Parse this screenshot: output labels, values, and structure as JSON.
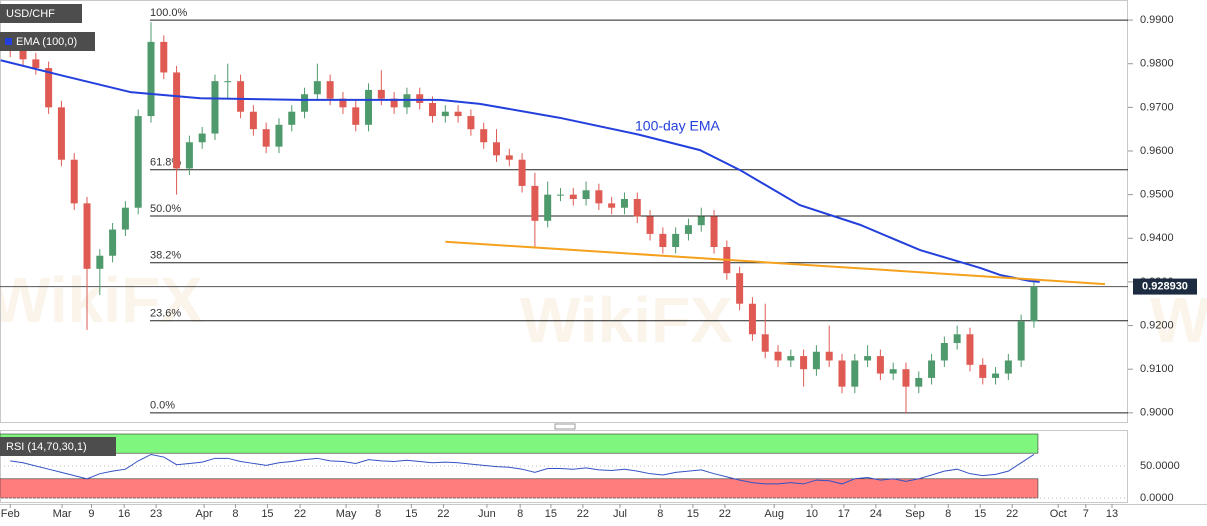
{
  "watermark": "WikiFX",
  "chart_data": [
    {
      "type": "candlestick",
      "title": "USD/CHF",
      "up_color": "#4f9a6c",
      "down_color": "#df5a52",
      "xlim": [
        -1.6,
        174.7
      ],
      "ylim": [
        0.8979,
        0.9946
      ],
      "yticks": [
        {
          "value": 0.99,
          "label": "0.9900"
        },
        {
          "value": 0.98,
          "label": "0.9800"
        },
        {
          "value": 0.97,
          "label": "0.9700"
        },
        {
          "value": 0.96,
          "label": "0.9600"
        },
        {
          "value": 0.95,
          "label": "0.9500"
        },
        {
          "value": 0.94,
          "label": "0.9400"
        },
        {
          "value": 0.93,
          "label": "0.9300"
        },
        {
          "value": 0.92,
          "label": "0.9200"
        },
        {
          "value": 0.91,
          "label": "0.9100"
        },
        {
          "value": 0.9,
          "label": "0.9000"
        }
      ],
      "xticks": [
        {
          "value": 0,
          "label": "Feb"
        },
        {
          "value": 8.1,
          "label": "Mar"
        },
        {
          "value": 12.7,
          "label": "9"
        },
        {
          "value": 17.8,
          "label": "16"
        },
        {
          "value": 22.8,
          "label": "23"
        },
        {
          "value": 30.3,
          "label": "Apr"
        },
        {
          "value": 35.2,
          "label": "8"
        },
        {
          "value": 40.2,
          "label": "15"
        },
        {
          "value": 45.3,
          "label": "22"
        },
        {
          "value": 52.5,
          "label": "May"
        },
        {
          "value": 57.5,
          "label": "8"
        },
        {
          "value": 62.7,
          "label": "15"
        },
        {
          "value": 67.7,
          "label": "22"
        },
        {
          "value": 74.5,
          "label": "Jun"
        },
        {
          "value": 79.7,
          "label": "8"
        },
        {
          "value": 84.5,
          "label": "15"
        },
        {
          "value": 89.5,
          "label": "22"
        },
        {
          "value": 95.3,
          "label": "Jul"
        },
        {
          "value": 101.6,
          "label": "8"
        },
        {
          "value": 106.7,
          "label": "15"
        },
        {
          "value": 111.7,
          "label": "22"
        },
        {
          "value": 119.4,
          "label": "Aug"
        },
        {
          "value": 125.3,
          "label": "10"
        },
        {
          "value": 130.3,
          "label": "17"
        },
        {
          "value": 135.3,
          "label": "24"
        },
        {
          "value": 141.4,
          "label": "Sep"
        },
        {
          "value": 146.6,
          "label": "8"
        },
        {
          "value": 151.6,
          "label": "15"
        },
        {
          "value": 156.6,
          "label": "22"
        },
        {
          "value": 163.8,
          "label": "Oct"
        },
        {
          "value": 168.1,
          "label": "7"
        },
        {
          "value": 172.2,
          "label": "13"
        }
      ],
      "x": [
        0,
        2,
        4,
        6,
        8,
        10,
        12,
        14,
        16,
        18,
        20,
        22,
        24,
        26,
        28,
        30,
        32,
        34,
        36,
        38,
        40,
        42,
        44,
        46,
        48,
        50,
        52,
        54,
        56,
        58,
        60,
        62,
        64,
        66,
        68,
        70,
        72,
        74,
        76,
        78,
        80,
        82,
        84,
        86,
        88,
        90,
        92,
        94,
        96,
        98,
        100,
        102,
        104,
        106,
        108,
        110,
        112,
        114,
        116,
        118,
        120,
        122,
        124,
        126,
        128,
        130,
        132,
        134,
        136,
        138,
        140,
        142,
        144,
        146,
        148,
        150,
        152,
        154,
        156,
        158,
        160
      ],
      "open": [
        0.984,
        0.983,
        0.981,
        0.979,
        0.97,
        0.958,
        0.948,
        0.933,
        0.936,
        0.942,
        0.947,
        0.968,
        0.985,
        0.978,
        0.956,
        0.962,
        0.964,
        0.976,
        0.976,
        0.969,
        0.965,
        0.961,
        0.966,
        0.969,
        0.973,
        0.976,
        0.972,
        0.97,
        0.966,
        0.974,
        0.972,
        0.97,
        0.973,
        0.971,
        0.968,
        0.969,
        0.968,
        0.965,
        0.962,
        0.959,
        0.958,
        0.952,
        0.944,
        0.95,
        0.95,
        0.949,
        0.951,
        0.948,
        0.947,
        0.949,
        0.945,
        0.941,
        0.938,
        0.941,
        0.943,
        0.945,
        0.938,
        0.932,
        0.925,
        0.918,
        0.914,
        0.912,
        0.913,
        0.91,
        0.914,
        0.912,
        0.906,
        0.912,
        0.913,
        0.909,
        0.91,
        0.906,
        0.908,
        0.912,
        0.916,
        0.918,
        0.911,
        0.908,
        0.909,
        0.912,
        0.921
      ],
      "high": [
        0.9855,
        0.9845,
        0.9825,
        0.9805,
        0.9715,
        0.9595,
        0.9495,
        0.9375,
        0.9435,
        0.9485,
        0.9695,
        0.9895,
        0.9865,
        0.9795,
        0.9635,
        0.9655,
        0.9775,
        0.98,
        0.9775,
        0.9705,
        0.9665,
        0.9675,
        0.9705,
        0.9745,
        0.98,
        0.9775,
        0.9735,
        0.9715,
        0.9755,
        0.9785,
        0.9735,
        0.9745,
        0.9745,
        0.9725,
        0.9705,
        0.9705,
        0.9695,
        0.9665,
        0.965,
        0.9605,
        0.9595,
        0.955,
        0.953,
        0.9515,
        0.9515,
        0.953,
        0.9525,
        0.9495,
        0.9505,
        0.9505,
        0.9465,
        0.9425,
        0.9425,
        0.9445,
        0.947,
        0.9465,
        0.9395,
        0.9335,
        0.9265,
        0.925,
        0.9155,
        0.9145,
        0.9145,
        0.9155,
        0.92,
        0.9135,
        0.9135,
        0.9155,
        0.9145,
        0.9115,
        0.9115,
        0.9095,
        0.9135,
        0.9175,
        0.92,
        0.9195,
        0.9125,
        0.9105,
        0.9135,
        0.9225,
        0.93
      ],
      "low": [
        0.9815,
        0.9795,
        0.9775,
        0.9685,
        0.9565,
        0.9465,
        0.919,
        0.927,
        0.9345,
        0.9405,
        0.9455,
        0.9665,
        0.9765,
        0.95,
        0.9545,
        0.9605,
        0.9625,
        0.972,
        0.9675,
        0.9635,
        0.9595,
        0.9595,
        0.9645,
        0.9675,
        0.9715,
        0.9705,
        0.9685,
        0.9645,
        0.9645,
        0.9705,
        0.9685,
        0.9685,
        0.9695,
        0.9665,
        0.9665,
        0.9665,
        0.9635,
        0.9605,
        0.9575,
        0.9565,
        0.9505,
        0.938,
        0.9425,
        0.9485,
        0.9475,
        0.9475,
        0.9465,
        0.9455,
        0.9455,
        0.9435,
        0.9395,
        0.9365,
        0.9365,
        0.9395,
        0.9415,
        0.9365,
        0.9305,
        0.9235,
        0.9165,
        0.9125,
        0.9105,
        0.9105,
        0.906,
        0.9085,
        0.9105,
        0.9045,
        0.9045,
        0.9105,
        0.9075,
        0.9075,
        0.8998,
        0.9045,
        0.9065,
        0.9105,
        0.9145,
        0.9095,
        0.9065,
        0.9065,
        0.9075,
        0.9105,
        0.9195
      ],
      "close": [
        0.983,
        0.981,
        0.979,
        0.97,
        0.958,
        0.948,
        0.933,
        0.936,
        0.942,
        0.947,
        0.968,
        0.985,
        0.978,
        0.956,
        0.962,
        0.964,
        0.976,
        0.976,
        0.969,
        0.965,
        0.961,
        0.966,
        0.969,
        0.973,
        0.976,
        0.972,
        0.97,
        0.966,
        0.974,
        0.972,
        0.97,
        0.973,
        0.971,
        0.968,
        0.969,
        0.968,
        0.965,
        0.962,
        0.959,
        0.958,
        0.952,
        0.944,
        0.95,
        0.95,
        0.949,
        0.951,
        0.948,
        0.947,
        0.949,
        0.945,
        0.941,
        0.938,
        0.941,
        0.943,
        0.945,
        0.938,
        0.932,
        0.925,
        0.918,
        0.914,
        0.912,
        0.913,
        0.91,
        0.914,
        0.912,
        0.906,
        0.912,
        0.913,
        0.909,
        0.91,
        0.906,
        0.908,
        0.912,
        0.916,
        0.918,
        0.911,
        0.908,
        0.909,
        0.912,
        0.921,
        0.9289
      ],
      "overlays": [
        {
          "type": "line",
          "name": "EMA (100,0)",
          "annotation": "100-day EMA",
          "color": "#2440dc",
          "x": [
            -1.5,
            7.8,
            18.8,
            29.7,
            45.3,
            67.2,
            73.4,
            85.9,
            98.4,
            107.8,
            114.1,
            123.4,
            132.8,
            142.2,
            151.6,
            154.7,
            159.4,
            160.9
          ],
          "values": [
            0.9808,
            0.9774,
            0.9735,
            0.9721,
            0.9717,
            0.9717,
            0.9708,
            0.9676,
            0.9637,
            0.9602,
            0.9556,
            0.9476,
            0.9431,
            0.9373,
            0.9332,
            0.9316,
            0.9302,
            0.93
          ]
        },
        {
          "type": "line",
          "color": "#f5a11c",
          "x": [
            68,
            171.1
          ],
          "values": [
            0.9392,
            0.9295
          ]
        }
      ],
      "fib_levels": [
        {
          "value": 0.99,
          "label": "100.0%"
        },
        {
          "value": 0.9557,
          "label": "61.8%"
        },
        {
          "value": 0.9451,
          "label": "50.0%"
        },
        {
          "value": 0.9344,
          "label": "38.2%"
        },
        {
          "value": 0.9211,
          "label": "23.6%"
        },
        {
          "value": 0.9,
          "label": "0.0%"
        }
      ],
      "last_price": {
        "value": 0.92893,
        "label": "0.928930"
      }
    },
    {
      "type": "line",
      "title": "RSI (14,70,30,1)",
      "color": "#3452c4",
      "ylim": [
        0,
        100
      ],
      "yticks": [
        {
          "value": 50,
          "label": "50.0000"
        },
        {
          "value": 0,
          "label": "0.0000"
        }
      ],
      "bands": [
        {
          "from": 70,
          "to": 100,
          "color": "#7ff77f"
        },
        {
          "from": 0,
          "to": 30,
          "color": "#ff7d7d"
        }
      ],
      "x": [
        0,
        2,
        4,
        6,
        8,
        10,
        12,
        14,
        16,
        18,
        20,
        22,
        24,
        26,
        28,
        30,
        32,
        34,
        36,
        38,
        40,
        42,
        44,
        46,
        48,
        50,
        52,
        54,
        56,
        58,
        60,
        62,
        64,
        66,
        68,
        70,
        72,
        74,
        76,
        78,
        80,
        82,
        84,
        86,
        88,
        90,
        92,
        94,
        96,
        98,
        100,
        102,
        104,
        106,
        108,
        110,
        112,
        114,
        116,
        118,
        120,
        122,
        124,
        126,
        128,
        130,
        132,
        134,
        136,
        138,
        140,
        142,
        144,
        146,
        148,
        150,
        152,
        154,
        156,
        158,
        160
      ],
      "values": [
        58,
        55,
        50,
        45,
        40,
        35,
        30,
        38,
        42,
        45,
        58,
        68,
        64,
        52,
        54,
        56,
        62,
        62,
        57,
        54,
        51,
        55,
        57,
        60,
        62,
        58,
        57,
        54,
        60,
        58,
        57,
        59,
        57,
        55,
        56,
        55,
        53,
        51,
        49,
        48,
        45,
        40,
        46,
        46,
        45,
        47,
        44,
        43,
        45,
        42,
        38,
        36,
        40,
        42,
        44,
        38,
        33,
        28,
        24,
        22,
        22,
        24,
        22,
        28,
        27,
        22,
        30,
        32,
        28,
        30,
        26,
        30,
        36,
        42,
        45,
        38,
        35,
        37,
        42,
        55,
        68
      ]
    }
  ]
}
